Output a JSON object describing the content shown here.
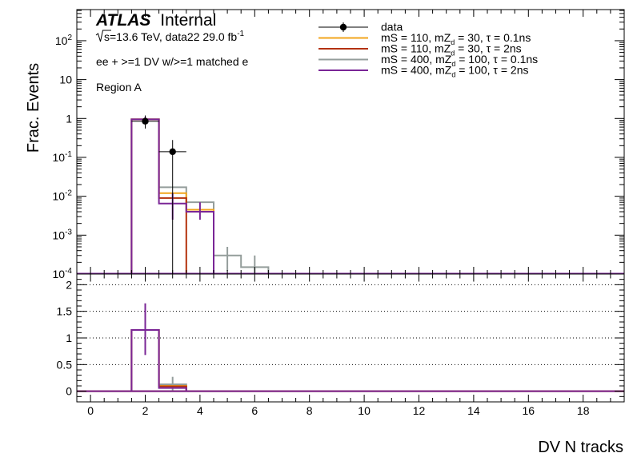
{
  "chart_data": {
    "type": "step-histogram-with-ratio",
    "experiment_label": "ATLAS",
    "experiment_status": "Internal",
    "sqrt_s_label": "s",
    "energy_text": "=13.6 TeV, data22 29.0 fb",
    "lumi_exponent": "-1",
    "selection": "ee + >=1 DV w/>=1 matched e",
    "region": "Region A",
    "ylabel": "Frac. Events",
    "xlabel": "DV N tracks",
    "xlim": [
      -0.5,
      19.5
    ],
    "top_ylim_log10": [
      -4,
      2.8
    ],
    "ratio_ylim": [
      -0.2,
      2.2
    ],
    "x_ticks": [
      "0",
      "2",
      "4",
      "6",
      "8",
      "10",
      "12",
      "14",
      "16",
      "18"
    ],
    "top_y_ticks": [
      {
        "log10": 2,
        "base": "10",
        "exp": "2"
      },
      {
        "log10": 1,
        "base": "10",
        "exp": ""
      },
      {
        "log10": 0,
        "base": "1",
        "exp": ""
      },
      {
        "log10": -1,
        "base": "10",
        "exp": "-1"
      },
      {
        "log10": -2,
        "base": "10",
        "exp": "-2"
      },
      {
        "log10": -3,
        "base": "10",
        "exp": "-3"
      },
      {
        "log10": -4,
        "base": "10",
        "exp": "-4"
      }
    ],
    "ratio_y_ticks": [
      "0",
      "0.5",
      "1",
      "1.5",
      "2"
    ],
    "ratio_gridlines": [
      0,
      0.5,
      1,
      1.5,
      2
    ],
    "legend": [
      {
        "type": "marker",
        "label": "data",
        "color": "#000000"
      },
      {
        "type": "line",
        "main": "mS = 110, mZ",
        "sub": "d",
        "rest": " = 30, τ = 0.1ns",
        "color": "#f2a51c"
      },
      {
        "type": "line",
        "main": "mS = 110, mZ",
        "sub": "d",
        "rest": " = 30, τ = 2ns",
        "color": "#b3310b"
      },
      {
        "type": "line",
        "main": "mS = 400, mZ",
        "sub": "d",
        "rest": " = 100, τ = 0.1ns",
        "color": "#949d9b"
      },
      {
        "type": "line",
        "main": "mS = 400, mZ",
        "sub": "d",
        "rest": " = 100, τ = 2ns",
        "color": "#7a2596"
      }
    ],
    "data_points": [
      {
        "x": 2,
        "y": 0.85,
        "ylo": 0.55,
        "yhi": 1.2,
        "xerr": 0.5
      },
      {
        "x": 3,
        "y": 0.14,
        "ylo": 1e-05,
        "yhi": 0.28,
        "xerr": 0.5
      }
    ],
    "series": [
      {
        "color": "#949d9b",
        "bins": [
          [
            1.5,
            2.5,
            0.95
          ],
          [
            2.5,
            3.5,
            0.017
          ],
          [
            3.5,
            4.5,
            0.007
          ],
          [
            4.5,
            5.5,
            0.0003
          ],
          [
            5.5,
            6.5,
            0.00015
          ]
        ],
        "errors": [
          [
            5,
            0.00012,
            0.0005
          ],
          [
            6,
            7e-05,
            0.0003
          ]
        ]
      },
      {
        "color": "#f2a51c",
        "bins": [
          [
            1.5,
            2.5,
            0.95
          ],
          [
            2.5,
            3.5,
            0.012
          ],
          [
            3.5,
            4.5,
            0.0045
          ]
        ],
        "errors": []
      },
      {
        "color": "#b3310b",
        "bins": [
          [
            1.5,
            2.5,
            0.95
          ],
          [
            2.5,
            3.5,
            0.009
          ]
        ],
        "errors": []
      },
      {
        "color": "#7a2596",
        "bins": [
          [
            1.5,
            2.5,
            0.95
          ],
          [
            2.5,
            3.5,
            0.0065
          ],
          [
            3.5,
            4.5,
            0.004
          ]
        ],
        "errors": [
          [
            2,
            0.8,
            1.1
          ],
          [
            3,
            0.0025,
            0.012
          ],
          [
            4,
            0.0025,
            0.007
          ]
        ]
      }
    ],
    "ratio_series": [
      {
        "color": "#949d9b",
        "bins": [
          [
            1.5,
            2.5,
            1.15
          ],
          [
            2.5,
            3.5,
            0.13
          ]
        ],
        "errors": [
          [
            3,
            0.0,
            0.27
          ]
        ]
      },
      {
        "color": "#f2a51c",
        "bins": [
          [
            1.5,
            2.5,
            1.15
          ],
          [
            2.5,
            3.5,
            0.1
          ]
        ],
        "errors": []
      },
      {
        "color": "#b3310b",
        "bins": [
          [
            1.5,
            2.5,
            1.15
          ],
          [
            2.5,
            3.5,
            0.09
          ]
        ],
        "errors": []
      },
      {
        "color": "#7a2596",
        "bins": [
          [
            1.5,
            2.5,
            1.15
          ],
          [
            2.5,
            3.5,
            0.06
          ]
        ],
        "errors": [
          [
            2,
            0.68,
            1.65
          ]
        ]
      }
    ]
  }
}
